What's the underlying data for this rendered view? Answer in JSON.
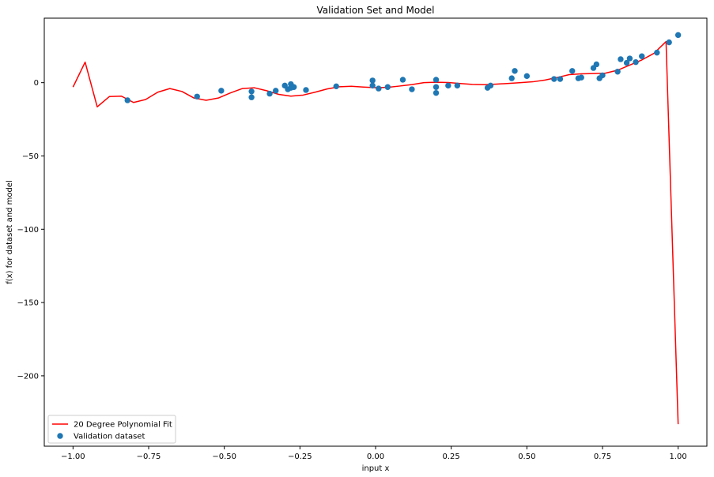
{
  "chart_data": {
    "type": "scatter",
    "title": "Validation Set and Model",
    "xlabel": "input x",
    "ylabel": "f(x) for dataset and model",
    "xlim": [
      -1.095,
      1.095
    ],
    "ylim": [
      -248,
      44
    ],
    "xticks": [
      -1.0,
      -0.75,
      -0.5,
      -0.25,
      0.0,
      0.25,
      0.5,
      0.75,
      1.0
    ],
    "xtick_labels": [
      "−1.00",
      "−0.75",
      "−0.50",
      "−0.25",
      "0.00",
      "0.25",
      "0.50",
      "0.75",
      "1.00"
    ],
    "yticks": [
      0,
      -50,
      -100,
      -150,
      -200
    ],
    "ytick_labels": [
      "0",
      "−50",
      "−100",
      "−150",
      "−200"
    ],
    "grid": false,
    "legend_position": "lower-left",
    "series": [
      {
        "name": "20 Degree Polynomial Fit",
        "kind": "line",
        "color": "#ff0000",
        "x": [
          -1.0,
          -0.96,
          -0.92,
          -0.88,
          -0.84,
          -0.8,
          -0.76,
          -0.72,
          -0.68,
          -0.64,
          -0.6,
          -0.56,
          -0.52,
          -0.48,
          -0.44,
          -0.4,
          -0.36,
          -0.32,
          -0.28,
          -0.24,
          -0.2,
          -0.16,
          -0.12,
          -0.08,
          -0.04,
          0.0,
          0.04,
          0.08,
          0.12,
          0.16,
          0.2,
          0.24,
          0.28,
          0.32,
          0.36,
          0.4,
          0.44,
          0.48,
          0.52,
          0.56,
          0.6,
          0.64,
          0.68,
          0.72,
          0.76,
          0.8,
          0.84,
          0.88,
          0.92,
          0.96,
          1.0
        ],
        "y": [
          -3,
          14,
          -16.5,
          -9.5,
          -9.2,
          -13.5,
          -11.5,
          -6.5,
          -4,
          -6,
          -10.5,
          -12,
          -10.5,
          -7,
          -4,
          -3.5,
          -5.5,
          -8,
          -9.2,
          -8.5,
          -6.5,
          -4.3,
          -2.8,
          -2.5,
          -3,
          -3.4,
          -3.2,
          -2.3,
          -1.3,
          0,
          0.3,
          0.1,
          -0.6,
          -1.2,
          -1.4,
          -1,
          -0.5,
          0,
          0.6,
          1.8,
          3.5,
          5.5,
          6,
          6.2,
          6.5,
          8.5,
          12,
          15.5,
          20,
          28,
          -233
        ]
      },
      {
        "name": "Validation dataset",
        "kind": "scatter",
        "color": "#1f77b4",
        "x": [
          -0.82,
          -0.59,
          -0.51,
          -0.41,
          -0.41,
          -0.35,
          -0.33,
          -0.3,
          -0.29,
          -0.28,
          -0.28,
          -0.27,
          -0.23,
          -0.13,
          -0.01,
          -0.01,
          0.01,
          0.04,
          0.09,
          0.12,
          0.2,
          0.2,
          0.2,
          0.24,
          0.27,
          0.37,
          0.38,
          0.45,
          0.46,
          0.5,
          0.59,
          0.61,
          0.65,
          0.67,
          0.68,
          0.72,
          0.73,
          0.74,
          0.75,
          0.8,
          0.81,
          0.83,
          0.84,
          0.86,
          0.88,
          0.93,
          0.97,
          1.0
        ],
        "y": [
          -12,
          -9.5,
          -5.5,
          -10,
          -6,
          -7.5,
          -5.5,
          -2,
          -4.5,
          -1,
          -3.5,
          -3,
          -5,
          -2.5,
          1.5,
          -2,
          -4,
          -3,
          2,
          -4.5,
          2,
          -3,
          -7,
          -2,
          -2,
          -3.5,
          -2,
          3,
          8,
          4.5,
          2.5,
          2.5,
          8,
          3,
          3.5,
          10,
          12.5,
          3,
          5,
          7.5,
          16,
          13.5,
          16.5,
          14,
          18,
          20.5,
          27.5,
          32.5
        ]
      }
    ]
  }
}
